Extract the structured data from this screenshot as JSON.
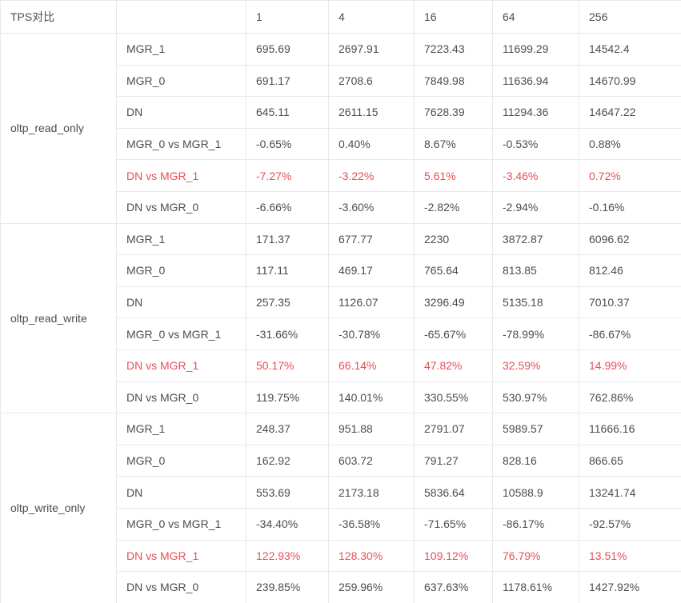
{
  "table": {
    "corner_label": "TPS对比",
    "metric_column_header": "",
    "thread_counts": [
      "1",
      "4",
      "16",
      "64",
      "256"
    ],
    "groups": [
      {
        "name": "oltp_read_only",
        "rows": [
          {
            "label": "MGR_1",
            "red": false,
            "values": [
              "695.69",
              "2697.91",
              "7223.43",
              "11699.29",
              "14542.4"
            ]
          },
          {
            "label": "MGR_0",
            "red": false,
            "values": [
              "691.17",
              "2708.6",
              "7849.98",
              "11636.94",
              "14670.99"
            ]
          },
          {
            "label": "DN",
            "red": false,
            "values": [
              "645.11",
              "2611.15",
              "7628.39",
              "11294.36",
              "14647.22"
            ]
          },
          {
            "label": "MGR_0 vs MGR_1",
            "red": false,
            "values": [
              "-0.65%",
              "0.40%",
              "8.67%",
              "-0.53%",
              "0.88%"
            ]
          },
          {
            "label": "DN vs MGR_1",
            "red": true,
            "values": [
              "-7.27%",
              "-3.22%",
              "5.61%",
              "-3.46%",
              "0.72%"
            ]
          },
          {
            "label": "DN vs MGR_0",
            "red": false,
            "values": [
              "-6.66%",
              "-3.60%",
              "-2.82%",
              "-2.94%",
              "-0.16%"
            ]
          }
        ]
      },
      {
        "name": "oltp_read_write",
        "rows": [
          {
            "label": "MGR_1",
            "red": false,
            "values": [
              "171.37",
              "677.77",
              "2230",
              "3872.87",
              "6096.62"
            ]
          },
          {
            "label": "MGR_0",
            "red": false,
            "values": [
              "117.11",
              "469.17",
              "765.64",
              "813.85",
              "812.46"
            ]
          },
          {
            "label": "DN",
            "red": false,
            "values": [
              "257.35",
              "1126.07",
              "3296.49",
              "5135.18",
              "7010.37"
            ]
          },
          {
            "label": "MGR_0 vs MGR_1",
            "red": false,
            "values": [
              "-31.66%",
              "-30.78%",
              "-65.67%",
              "-78.99%",
              "-86.67%"
            ]
          },
          {
            "label": "DN vs MGR_1",
            "red": true,
            "values": [
              "50.17%",
              "66.14%",
              "47.82%",
              "32.59%",
              "14.99%"
            ]
          },
          {
            "label": "DN vs MGR_0",
            "red": false,
            "values": [
              "119.75%",
              "140.01%",
              "330.55%",
              "530.97%",
              "762.86%"
            ]
          }
        ]
      },
      {
        "name": "oltp_write_only",
        "rows": [
          {
            "label": "MGR_1",
            "red": false,
            "values": [
              "248.37",
              "951.88",
              "2791.07",
              "5989.57",
              "11666.16"
            ]
          },
          {
            "label": "MGR_0",
            "red": false,
            "values": [
              "162.92",
              "603.72",
              "791.27",
              "828.16",
              "866.65"
            ]
          },
          {
            "label": "DN",
            "red": false,
            "values": [
              "553.69",
              "2173.18",
              "5836.64",
              "10588.9",
              "13241.74"
            ]
          },
          {
            "label": "MGR_0 vs MGR_1",
            "red": false,
            "values": [
              "-34.40%",
              "-36.58%",
              "-71.65%",
              "-86.17%",
              "-92.57%"
            ]
          },
          {
            "label": "DN vs MGR_1",
            "red": true,
            "values": [
              "122.93%",
              "128.30%",
              "109.12%",
              "76.79%",
              "13.51%"
            ]
          },
          {
            "label": "DN vs MGR_0",
            "red": false,
            "values": [
              "239.85%",
              "259.96%",
              "637.63%",
              "1178.61%",
              "1427.92%"
            ]
          }
        ]
      }
    ],
    "colors": {
      "text": "#4d4d4d",
      "red": "#e84e56",
      "border": "#e9e9e9",
      "background": "#ffffff"
    }
  }
}
